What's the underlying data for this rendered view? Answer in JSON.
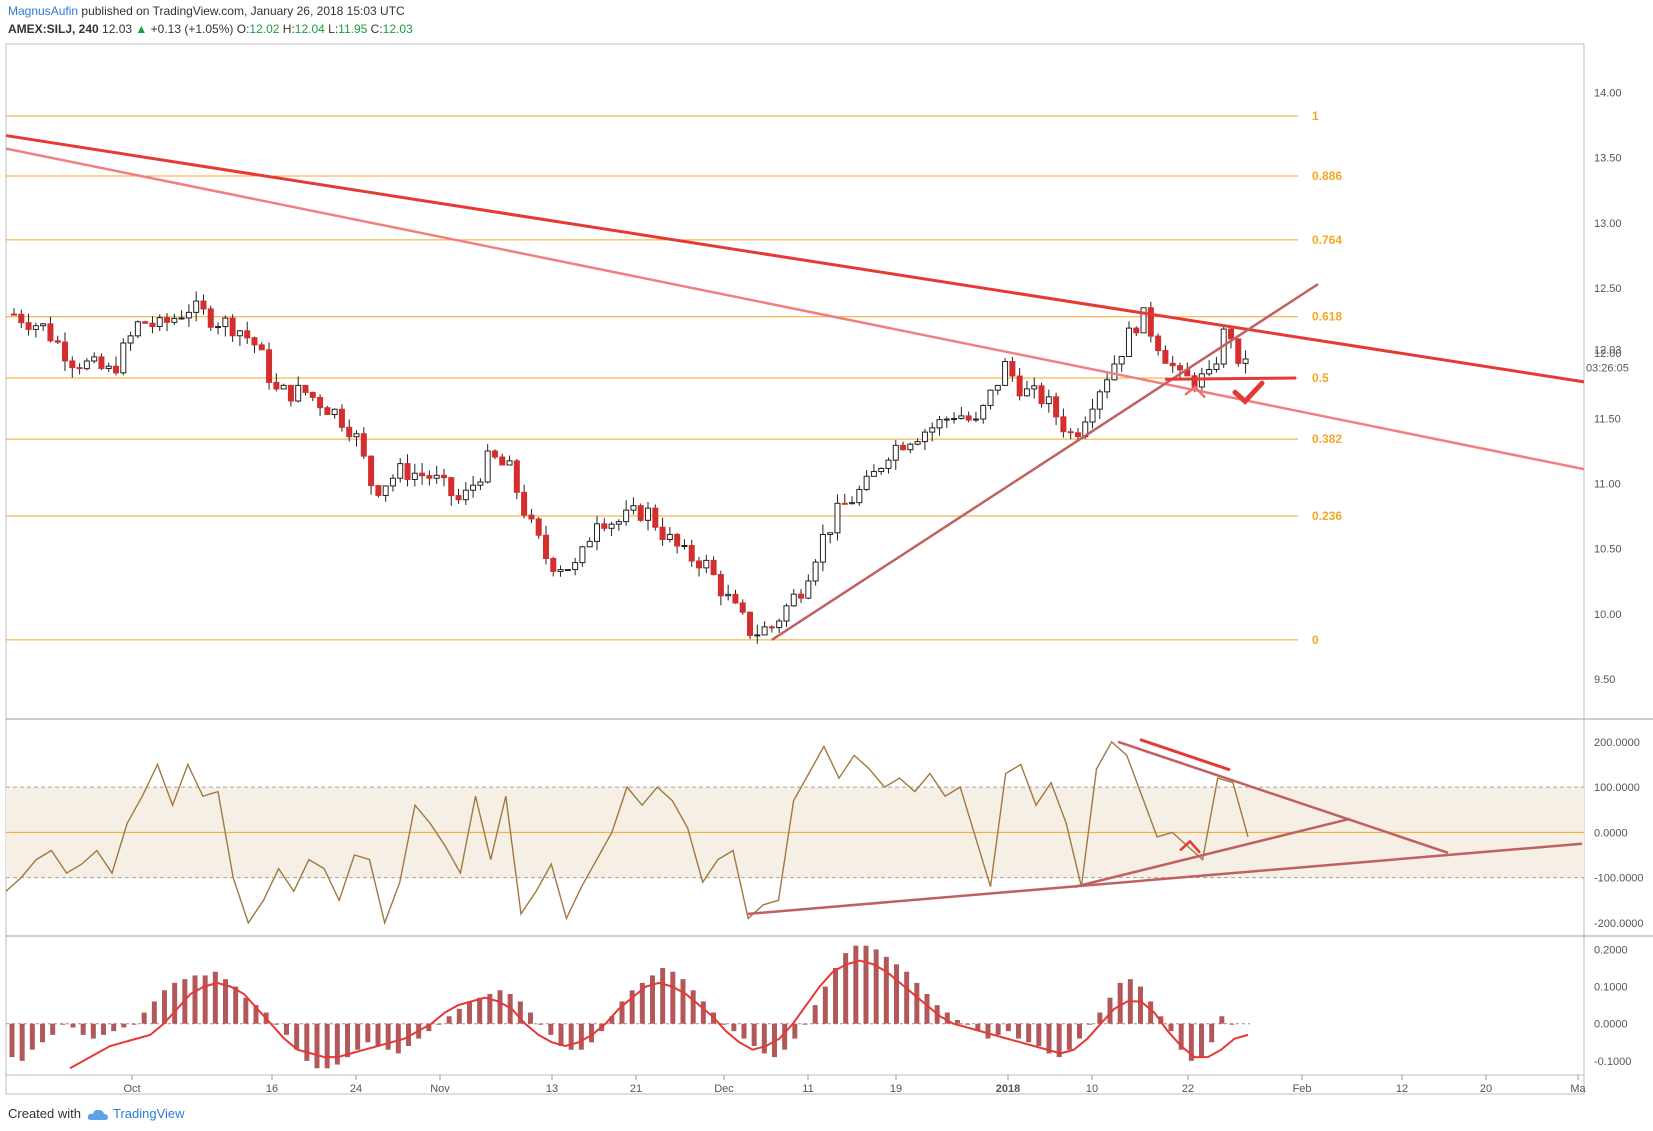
{
  "header": {
    "author": "MagnusAufin",
    "published": "published on TradingView.com, January 26, 2018 15:03 UTC",
    "symbol": "AMEX:SILJ, 240",
    "last": "12.03",
    "change": "+0.13 (+1.05%)",
    "open_label": "O:",
    "open": "12.02",
    "high_label": "H:",
    "high": "12.04",
    "low_label": "L:",
    "low": "11.95",
    "close_label": "C:",
    "close": "12.03"
  },
  "footer": {
    "created_with": "Created with",
    "brand": "TradingView"
  },
  "chart_data": [
    {
      "type": "candlestick",
      "price_axis": {
        "ticks": [
          "14.00",
          "13.50",
          "13.00",
          "12.50",
          "12.00",
          "11.50",
          "11.00",
          "10.50",
          "10.00",
          "9.50"
        ],
        "ylim": [
          9.3,
          14.25
        ]
      },
      "last_price_label": "12.03",
      "countdown_label": "03:26:05",
      "time_axis": {
        "ticks": [
          "Oct",
          "16",
          "24",
          "Nov",
          "13",
          "21",
          "Dec",
          "11",
          "19",
          "2018",
          "10",
          "22",
          "Feb",
          "12",
          "20",
          "Ma"
        ]
      },
      "fib_levels": [
        {
          "label": "1",
          "price": 13.82
        },
        {
          "label": "0.886",
          "price": 13.36
        },
        {
          "label": "0.764",
          "price": 12.87
        },
        {
          "label": "0.618",
          "price": 12.28
        },
        {
          "label": "0.5",
          "price": 11.81
        },
        {
          "label": "0.382",
          "price": 11.34
        },
        {
          "label": "0.236",
          "price": 10.75
        },
        {
          "label": "0",
          "price": 9.8
        }
      ],
      "close_path": [
        [
          "Sep 21",
          12.3
        ],
        [
          "Sep 24",
          12.2
        ],
        [
          "Sep 27",
          11.95
        ],
        [
          "Oct 1",
          11.85
        ],
        [
          "Oct 4",
          12.25
        ],
        [
          "Oct 6",
          12.2
        ],
        [
          "Oct 9",
          12.35
        ],
        [
          "Oct 12",
          12.25
        ],
        [
          "Oct 14",
          12.2
        ],
        [
          "Oct 16",
          12.05
        ],
        [
          "Oct 18",
          11.7
        ],
        [
          "Oct 21",
          11.7
        ],
        [
          "Oct 24",
          11.55
        ],
        [
          "Oct 26",
          11.4
        ],
        [
          "Oct 28",
          10.95
        ],
        [
          "Oct 31",
          11.1
        ],
        [
          "Nov 3",
          11.05
        ],
        [
          "Nov 6",
          10.85
        ],
        [
          "Nov 9",
          11.2
        ],
        [
          "Nov 11",
          11.1
        ],
        [
          "Nov 13",
          10.7
        ],
        [
          "Nov 15",
          10.4
        ],
        [
          "Nov 18",
          10.35
        ],
        [
          "Nov 20",
          10.75
        ],
        [
          "Nov 22",
          10.7
        ],
        [
          "Nov 25",
          10.8
        ],
        [
          "Nov 27",
          10.6
        ],
        [
          "Nov 29",
          10.45
        ],
        [
          "Dec 1",
          10.4
        ],
        [
          "Dec 4",
          10.05
        ],
        [
          "Dec 6",
          9.85
        ],
        [
          "Dec 8",
          9.9
        ],
        [
          "Dec 11",
          10.2
        ],
        [
          "Dec 13",
          10.55
        ],
        [
          "Dec 15",
          10.8
        ],
        [
          "Dec 18",
          11.0
        ],
        [
          "Dec 20",
          11.25
        ],
        [
          "Dec 22",
          11.35
        ],
        [
          "Dec 25",
          11.45
        ],
        [
          "Dec 27",
          11.55
        ],
        [
          "Dec 29",
          11.45
        ],
        [
          "Jan 1",
          11.9
        ],
        [
          "Jan 3",
          11.7
        ],
        [
          "Jan 5",
          11.65
        ],
        [
          "Jan 8",
          11.35
        ],
        [
          "Jan 10",
          11.65
        ],
        [
          "Jan 12",
          11.9
        ],
        [
          "Jan 15",
          12.3
        ],
        [
          "Jan 17",
          12.05
        ],
        [
          "Jan 19",
          11.8
        ],
        [
          "Jan 22",
          11.8
        ],
        [
          "Jan 24",
          12.25
        ],
        [
          "Jan 25",
          11.85
        ],
        [
          "Jan 26",
          12.03
        ]
      ],
      "annotations": [
        "descending trendline",
        "parallel trendline",
        "ascending trendline from Dec low",
        "check mark"
      ]
    },
    {
      "type": "line",
      "name": "",
      "y_axis": {
        "ticks": [
          "200.0000",
          "100.0000",
          "0.0000",
          "-100.0000",
          "-200.0000"
        ],
        "ylim": [
          -220,
          235
        ]
      },
      "band": [
        -100,
        100
      ],
      "values": [
        -130,
        -100,
        -60,
        -40,
        -90,
        -70,
        -40,
        -90,
        20,
        80,
        150,
        60,
        150,
        80,
        90,
        -100,
        -200,
        -150,
        -80,
        -130,
        -60,
        -80,
        -150,
        -50,
        -60,
        -200,
        -110,
        60,
        20,
        -30,
        -90,
        80,
        -60,
        80,
        -180,
        -130,
        -70,
        -190,
        -120,
        -60,
        0,
        100,
        60,
        100,
        70,
        10,
        -110,
        -60,
        -40,
        -190,
        -160,
        -150,
        70,
        130,
        190,
        120,
        170,
        140,
        100,
        120,
        90,
        130,
        80,
        100,
        -10,
        -120,
        130,
        150,
        60,
        110,
        20,
        -120,
        140,
        200,
        170,
        80,
        -10,
        0,
        -30,
        -60,
        120,
        110,
        -10
      ]
    },
    {
      "type": "bar",
      "name": "",
      "y_axis": {
        "ticks": [
          "0.2000",
          "0.1000",
          "0.0000",
          "-0.1000"
        ],
        "ylim": [
          -0.13,
          0.22
        ]
      },
      "histogram": [
        -0.09,
        -0.1,
        -0.07,
        -0.05,
        -0.03,
        0.0,
        -0.01,
        -0.03,
        -0.04,
        -0.03,
        -0.02,
        -0.01,
        0.0,
        0.03,
        0.06,
        0.09,
        0.11,
        0.12,
        0.13,
        0.13,
        0.14,
        0.12,
        0.1,
        0.07,
        0.05,
        0.03,
        0.0,
        -0.03,
        -0.07,
        -0.1,
        -0.12,
        -0.12,
        -0.11,
        -0.09,
        -0.07,
        -0.05,
        -0.06,
        -0.07,
        -0.08,
        -0.06,
        -0.04,
        -0.02,
        0.0,
        0.02,
        0.04,
        0.06,
        0.07,
        0.08,
        0.09,
        0.08,
        0.06,
        0.03,
        0.0,
        -0.03,
        -0.06,
        -0.07,
        -0.07,
        -0.05,
        -0.02,
        0.02,
        0.06,
        0.09,
        0.11,
        0.13,
        0.15,
        0.14,
        0.12,
        0.09,
        0.06,
        0.03,
        0.0,
        -0.02,
        -0.04,
        -0.06,
        -0.08,
        -0.09,
        -0.07,
        -0.04,
        0.0,
        0.05,
        0.1,
        0.15,
        0.19,
        0.21,
        0.21,
        0.2,
        0.18,
        0.16,
        0.14,
        0.11,
        0.08,
        0.05,
        0.03,
        0.01,
        0.0,
        -0.02,
        -0.04,
        -0.03,
        -0.02,
        -0.04,
        -0.05,
        -0.06,
        -0.08,
        -0.09,
        -0.07,
        -0.04,
        0.0,
        0.03,
        0.07,
        0.11,
        0.12,
        0.1,
        0.06,
        0.02,
        -0.02,
        -0.07,
        -0.1,
        -0.09,
        -0.05,
        0.02,
        0.0
      ],
      "signal": [
        -0.12,
        -0.1,
        -0.08,
        -0.06,
        -0.05,
        -0.04,
        -0.03,
        0.0,
        0.04,
        0.08,
        0.1,
        0.11,
        0.1,
        0.08,
        0.04,
        0.0,
        -0.04,
        -0.07,
        -0.08,
        -0.09,
        -0.09,
        -0.08,
        -0.07,
        -0.06,
        -0.05,
        -0.04,
        -0.02,
        0.0,
        0.03,
        0.05,
        0.06,
        0.07,
        0.06,
        0.04,
        0.0,
        -0.03,
        -0.05,
        -0.06,
        -0.05,
        -0.03,
        0.0,
        0.04,
        0.07,
        0.1,
        0.11,
        0.1,
        0.08,
        0.05,
        0.02,
        -0.02,
        -0.05,
        -0.07,
        -0.06,
        -0.04,
        0.0,
        0.05,
        0.1,
        0.14,
        0.16,
        0.17,
        0.16,
        0.14,
        0.11,
        0.08,
        0.05,
        0.02,
        0.0,
        -0.01,
        -0.02,
        -0.03,
        -0.04,
        -0.05,
        -0.06,
        -0.07,
        -0.08,
        -0.07,
        -0.04,
        0.0,
        0.04,
        0.06,
        0.06,
        0.03,
        -0.02,
        -0.06,
        -0.09,
        -0.09,
        -0.07,
        -0.04,
        -0.03
      ]
    }
  ]
}
